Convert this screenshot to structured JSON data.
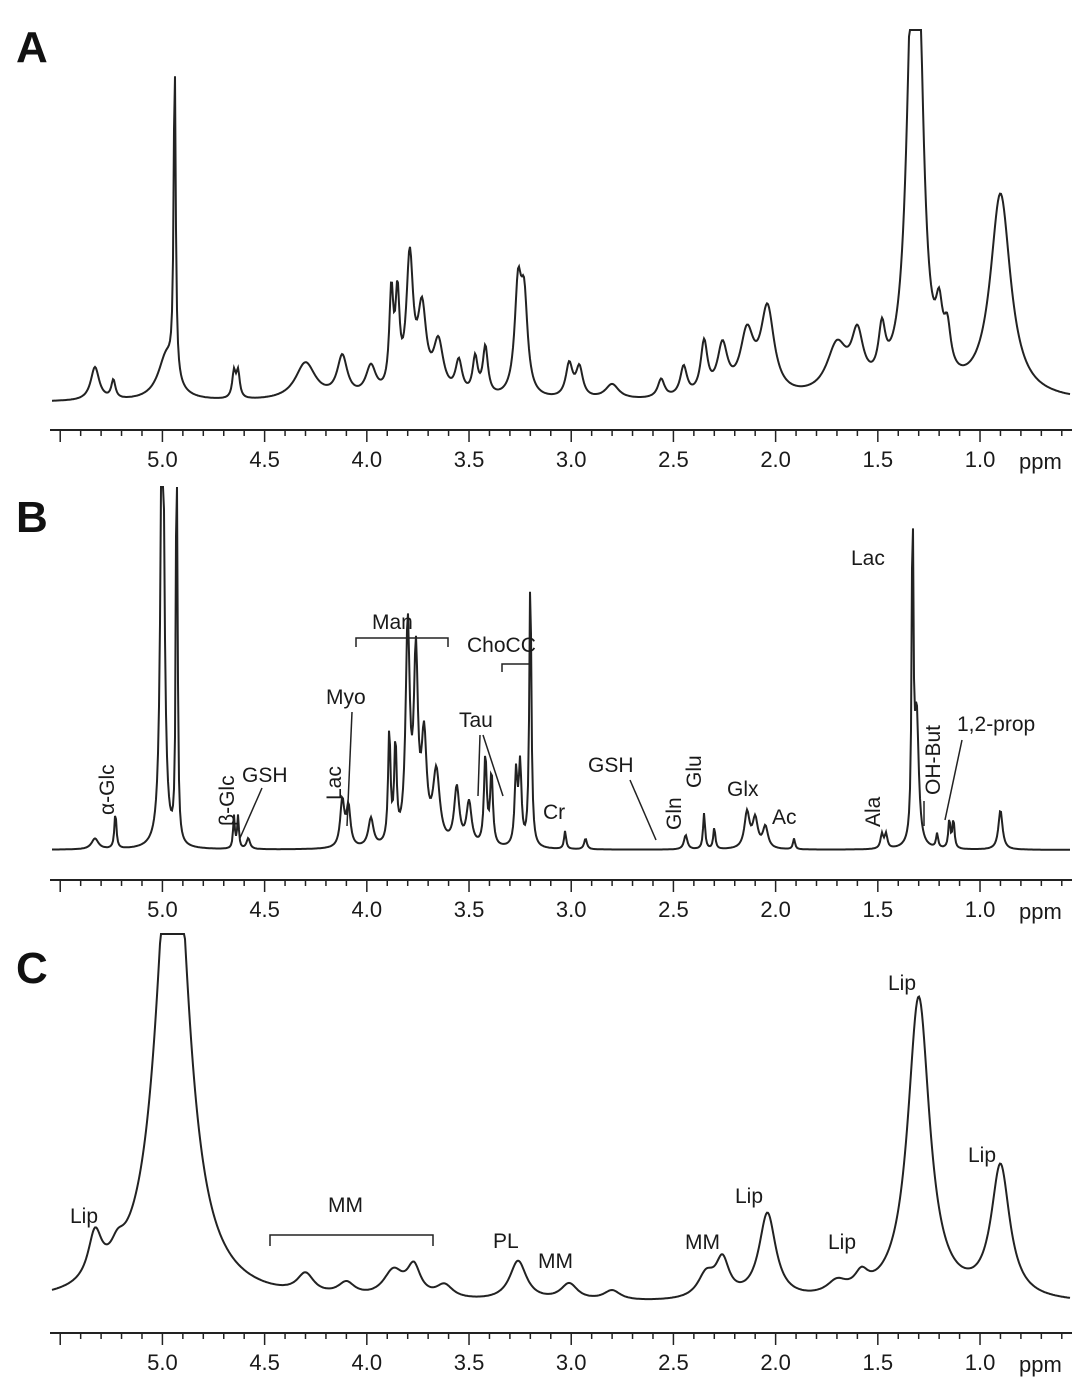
{
  "figure": {
    "panels": [
      "A",
      "B",
      "C"
    ],
    "axis_unit": "ppm",
    "tick_labels": [
      "5.0",
      "4.5",
      "4.0",
      "3.5",
      "3.0",
      "2.5",
      "2.0",
      "1.5",
      "1.0"
    ],
    "line_color": "#222222"
  },
  "chart_data": [
    {
      "panel": "A",
      "type": "line",
      "xlabel": "ppm",
      "xlim": [
        5.55,
        0.55
      ],
      "x_reversed": true,
      "ylim": [
        0,
        1.0
      ],
      "peaks": [
        {
          "x": 5.33,
          "y": 0.09,
          "w": 0.025
        },
        {
          "x": 5.24,
          "y": 0.05,
          "w": 0.012
        },
        {
          "x": 4.98,
          "y": 0.12,
          "w": 0.05
        },
        {
          "x": 4.94,
          "y": 0.86,
          "w": 0.006
        },
        {
          "x": 4.65,
          "y": 0.07,
          "w": 0.01
        },
        {
          "x": 4.63,
          "y": 0.07,
          "w": 0.01
        },
        {
          "x": 4.3,
          "y": 0.1,
          "w": 0.06
        },
        {
          "x": 4.12,
          "y": 0.11,
          "w": 0.03
        },
        {
          "x": 3.98,
          "y": 0.08,
          "w": 0.03
        },
        {
          "x": 3.88,
          "y": 0.26,
          "w": 0.012
        },
        {
          "x": 3.85,
          "y": 0.24,
          "w": 0.012
        },
        {
          "x": 3.79,
          "y": 0.36,
          "w": 0.02
        },
        {
          "x": 3.73,
          "y": 0.22,
          "w": 0.025
        },
        {
          "x": 3.65,
          "y": 0.14,
          "w": 0.03
        },
        {
          "x": 3.55,
          "y": 0.09,
          "w": 0.02
        },
        {
          "x": 3.47,
          "y": 0.1,
          "w": 0.015
        },
        {
          "x": 3.42,
          "y": 0.13,
          "w": 0.015
        },
        {
          "x": 3.26,
          "y": 0.28,
          "w": 0.02
        },
        {
          "x": 3.23,
          "y": 0.24,
          "w": 0.02
        },
        {
          "x": 3.01,
          "y": 0.09,
          "w": 0.02
        },
        {
          "x": 2.96,
          "y": 0.08,
          "w": 0.02
        },
        {
          "x": 2.8,
          "y": 0.04,
          "w": 0.04
        },
        {
          "x": 2.56,
          "y": 0.05,
          "w": 0.02
        },
        {
          "x": 2.45,
          "y": 0.08,
          "w": 0.02
        },
        {
          "x": 2.35,
          "y": 0.14,
          "w": 0.02
        },
        {
          "x": 2.26,
          "y": 0.13,
          "w": 0.03
        },
        {
          "x": 2.14,
          "y": 0.16,
          "w": 0.04
        },
        {
          "x": 2.04,
          "y": 0.23,
          "w": 0.04
        },
        {
          "x": 1.7,
          "y": 0.13,
          "w": 0.06
        },
        {
          "x": 1.6,
          "y": 0.14,
          "w": 0.035
        },
        {
          "x": 1.48,
          "y": 0.13,
          "w": 0.02
        },
        {
          "x": 1.33,
          "y": 0.96,
          "w": 0.035
        },
        {
          "x": 1.3,
          "y": 0.68,
          "w": 0.03
        },
        {
          "x": 1.2,
          "y": 0.14,
          "w": 0.02
        },
        {
          "x": 1.16,
          "y": 0.11,
          "w": 0.02
        },
        {
          "x": 0.9,
          "y": 0.55,
          "w": 0.06
        }
      ]
    },
    {
      "panel": "B",
      "type": "line",
      "xlabel": "ppm",
      "xlim": [
        5.55,
        0.55
      ],
      "x_reversed": true,
      "ylim": [
        0,
        1.0
      ],
      "peaks": [
        {
          "x": 5.33,
          "y": 0.03,
          "w": 0.02
        },
        {
          "x": 5.23,
          "y": 0.1,
          "w": 0.006
        },
        {
          "x": 5.0,
          "y": 1.5,
          "w": 0.01
        },
        {
          "x": 4.93,
          "y": 1.5,
          "w": 0.004
        },
        {
          "x": 4.65,
          "y": 0.09,
          "w": 0.005
        },
        {
          "x": 4.63,
          "y": 0.09,
          "w": 0.005
        },
        {
          "x": 4.58,
          "y": 0.03,
          "w": 0.01
        },
        {
          "x": 4.12,
          "y": 0.13,
          "w": 0.012
        },
        {
          "x": 4.09,
          "y": 0.11,
          "w": 0.012
        },
        {
          "x": 3.98,
          "y": 0.08,
          "w": 0.015
        },
        {
          "x": 3.89,
          "y": 0.31,
          "w": 0.007
        },
        {
          "x": 3.86,
          "y": 0.27,
          "w": 0.007
        },
        {
          "x": 3.8,
          "y": 0.6,
          "w": 0.012
        },
        {
          "x": 3.76,
          "y": 0.5,
          "w": 0.012
        },
        {
          "x": 3.72,
          "y": 0.28,
          "w": 0.015
        },
        {
          "x": 3.66,
          "y": 0.2,
          "w": 0.02
        },
        {
          "x": 3.56,
          "y": 0.16,
          "w": 0.015
        },
        {
          "x": 3.5,
          "y": 0.12,
          "w": 0.015
        },
        {
          "x": 3.42,
          "y": 0.25,
          "w": 0.008
        },
        {
          "x": 3.39,
          "y": 0.2,
          "w": 0.008
        },
        {
          "x": 3.27,
          "y": 0.2,
          "w": 0.008
        },
        {
          "x": 3.25,
          "y": 0.22,
          "w": 0.008
        },
        {
          "x": 3.2,
          "y": 0.76,
          "w": 0.006
        },
        {
          "x": 3.03,
          "y": 0.05,
          "w": 0.006
        },
        {
          "x": 2.93,
          "y": 0.03,
          "w": 0.008
        },
        {
          "x": 2.44,
          "y": 0.04,
          "w": 0.01
        },
        {
          "x": 2.35,
          "y": 0.1,
          "w": 0.006
        },
        {
          "x": 2.3,
          "y": 0.06,
          "w": 0.006
        },
        {
          "x": 2.14,
          "y": 0.1,
          "w": 0.015
        },
        {
          "x": 2.1,
          "y": 0.08,
          "w": 0.015
        },
        {
          "x": 2.05,
          "y": 0.06,
          "w": 0.015
        },
        {
          "x": 1.91,
          "y": 0.03,
          "w": 0.006
        },
        {
          "x": 1.48,
          "y": 0.04,
          "w": 0.008
        },
        {
          "x": 1.46,
          "y": 0.04,
          "w": 0.008
        },
        {
          "x": 1.33,
          "y": 0.92,
          "w": 0.005
        },
        {
          "x": 1.31,
          "y": 0.36,
          "w": 0.012
        },
        {
          "x": 1.21,
          "y": 0.04,
          "w": 0.006
        },
        {
          "x": 1.15,
          "y": 0.08,
          "w": 0.006
        },
        {
          "x": 1.13,
          "y": 0.08,
          "w": 0.006
        },
        {
          "x": 0.9,
          "y": 0.11,
          "w": 0.012
        }
      ],
      "annotations": [
        "α-Glc",
        "β-Glc",
        "GSH",
        "Lac",
        "Myo",
        "Man",
        "Tau",
        "ChoCC",
        "Cr",
        "GSH",
        "Gln",
        "Glu",
        "Glx",
        "Ac",
        "Ala",
        "Lac",
        "OH-But",
        "1,2-prop"
      ]
    },
    {
      "panel": "C",
      "type": "line",
      "xlabel": "ppm",
      "xlim": [
        5.55,
        0.55
      ],
      "x_reversed": true,
      "ylim": [
        0,
        1.0
      ],
      "peaks": [
        {
          "x": 5.33,
          "y": 0.14,
          "w": 0.04
        },
        {
          "x": 5.22,
          "y": 0.05,
          "w": 0.04
        },
        {
          "x": 4.95,
          "y": 1.6,
          "w": 0.09
        },
        {
          "x": 4.3,
          "y": 0.06,
          "w": 0.05
        },
        {
          "x": 4.1,
          "y": 0.04,
          "w": 0.05
        },
        {
          "x": 3.87,
          "y": 0.08,
          "w": 0.06
        },
        {
          "x": 3.77,
          "y": 0.09,
          "w": 0.04
        },
        {
          "x": 3.62,
          "y": 0.04,
          "w": 0.05
        },
        {
          "x": 3.26,
          "y": 0.12,
          "w": 0.05
        },
        {
          "x": 3.01,
          "y": 0.05,
          "w": 0.05
        },
        {
          "x": 2.8,
          "y": 0.03,
          "w": 0.05
        },
        {
          "x": 2.34,
          "y": 0.07,
          "w": 0.05
        },
        {
          "x": 2.26,
          "y": 0.11,
          "w": 0.04
        },
        {
          "x": 2.04,
          "y": 0.26,
          "w": 0.05
        },
        {
          "x": 1.7,
          "y": 0.04,
          "w": 0.06
        },
        {
          "x": 1.58,
          "y": 0.05,
          "w": 0.04
        },
        {
          "x": 1.3,
          "y": 0.92,
          "w": 0.065
        },
        {
          "x": 0.9,
          "y": 0.4,
          "w": 0.055
        }
      ],
      "annotations": [
        "Lip",
        "MM",
        "PL",
        "MM",
        "MM",
        "Lip",
        "Lip",
        "Lip",
        "Lip"
      ]
    }
  ],
  "labels": {
    "A": {
      "letter": "A"
    },
    "B": {
      "letter": "B",
      "alpha_glc": "α-Glc",
      "beta_glc": "β-Glc",
      "gsh1": "GSH",
      "lac1": "Lac",
      "myo": "Myo",
      "man": "Man",
      "tau": "Tau",
      "chocc": "ChoCC",
      "cr": "Cr",
      "gsh2": "GSH",
      "gln": "Gln",
      "glu": "Glu",
      "glx": "Glx",
      "ac": "Ac",
      "ala": "Ala",
      "lac2": "Lac",
      "ohbut": "OH-But",
      "prop": "1,2-prop"
    },
    "C": {
      "letter": "C",
      "lip1": "Lip",
      "mm1": "MM",
      "pl": "PL",
      "mm2": "MM",
      "mm3": "MM",
      "lip2": "Lip",
      "lip3": "Lip",
      "lip4": "Lip",
      "lip5": "Lip"
    }
  }
}
